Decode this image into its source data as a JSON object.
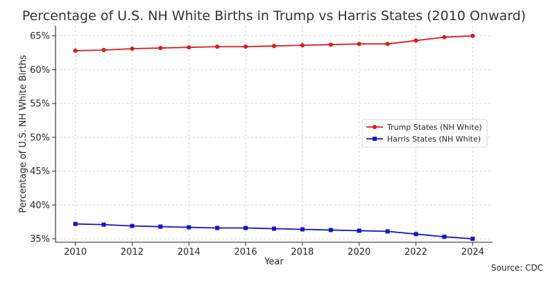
{
  "chart_data": {
    "type": "line",
    "title": "Percentage of U.S. NH White Births in Trump vs Harris States (2010 Onward)",
    "xlabel": "Year",
    "ylabel": "Percentage of U.S. NH White Births",
    "x": [
      2010,
      2011,
      2012,
      2013,
      2014,
      2015,
      2016,
      2017,
      2018,
      2019,
      2020,
      2021,
      2022,
      2023,
      2024
    ],
    "xticks": [
      2010,
      2012,
      2014,
      2016,
      2018,
      2020,
      2022,
      2024
    ],
    "xtick_labels": [
      "2010",
      "2012",
      "2014",
      "2016",
      "2018",
      "2020",
      "2022",
      "2024"
    ],
    "xlim": [
      2009.3,
      2024.7
    ],
    "yticks": [
      35,
      40,
      45,
      50,
      55,
      60,
      65
    ],
    "ytick_labels": [
      "35%",
      "40%",
      "45%",
      "50%",
      "55%",
      "60%",
      "65%"
    ],
    "ylim": [
      34.5,
      66.5
    ],
    "grid": true,
    "legend_position": "right",
    "series": [
      {
        "name": "Trump States (NH White)",
        "color": "#dd1b1b",
        "marker": "circle",
        "values": [
          62.8,
          62.9,
          63.1,
          63.2,
          63.3,
          63.4,
          63.4,
          63.5,
          63.6,
          63.7,
          63.8,
          63.8,
          64.3,
          64.8,
          65.0
        ]
      },
      {
        "name": "Harris States (NH White)",
        "color": "#1414c8",
        "marker": "square",
        "values": [
          37.2,
          37.1,
          36.9,
          36.8,
          36.7,
          36.6,
          36.6,
          36.5,
          36.4,
          36.3,
          36.2,
          36.1,
          35.7,
          35.3,
          35.0
        ]
      }
    ],
    "source": "Source: CDC"
  }
}
